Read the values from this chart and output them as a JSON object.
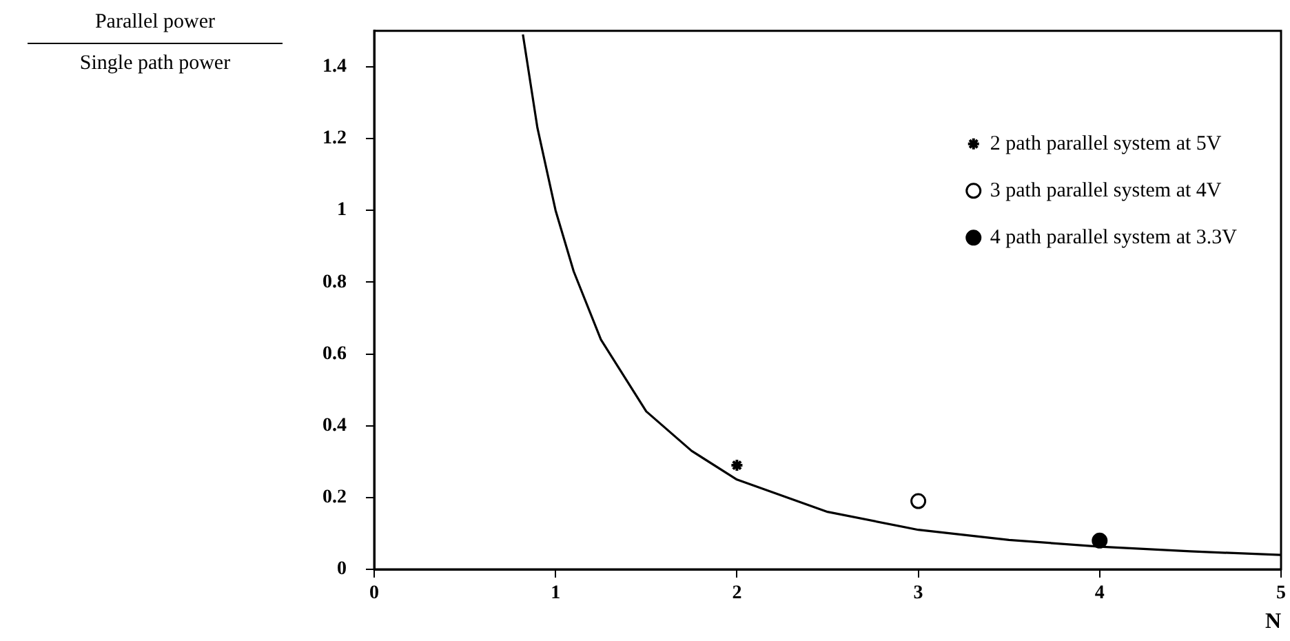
{
  "chart_data": {
    "type": "line",
    "xlabel": "N",
    "ylabel": "Parallel power\nSingle path power",
    "xlim": [
      0,
      5
    ],
    "xticks": [
      0,
      1,
      2,
      3,
      4,
      5
    ],
    "ylim": [
      0,
      1.5
    ],
    "yticks": [
      0,
      0.2,
      0.4,
      0.6,
      0.8,
      1,
      1.2,
      1.4
    ],
    "grid": false,
    "legend": "top right",
    "series": [
      {
        "color": "#000000",
        "marker": "none",
        "line_style": "solid",
        "x": [
          0.82,
          0.9,
          1,
          1.1,
          1.25,
          1.5,
          1.75,
          2,
          2.5,
          3,
          3.5,
          4,
          4.5,
          5
        ],
        "values": [
          1.49,
          1.23,
          1.0,
          0.83,
          0.64,
          0.44,
          0.33,
          0.25,
          0.16,
          0.11,
          0.082,
          0.063,
          0.05,
          0.04
        ]
      },
      {
        "type": "scatter",
        "name": "2 path parallel system at 5V",
        "color": "#000000",
        "marker": "cross",
        "x": [
          2
        ],
        "values": [
          0.29
        ]
      },
      {
        "type": "scatter",
        "name": "3 path parallel system at 4V",
        "color": "#ffffff",
        "marker": "circle",
        "x": [
          3
        ],
        "values": [
          0.19
        ]
      },
      {
        "type": "scatter",
        "name": "4 path parallel system at 3.3V",
        "color": "#000000",
        "marker": "circle",
        "x": [
          4
        ],
        "values": [
          0.08
        ]
      }
    ]
  }
}
